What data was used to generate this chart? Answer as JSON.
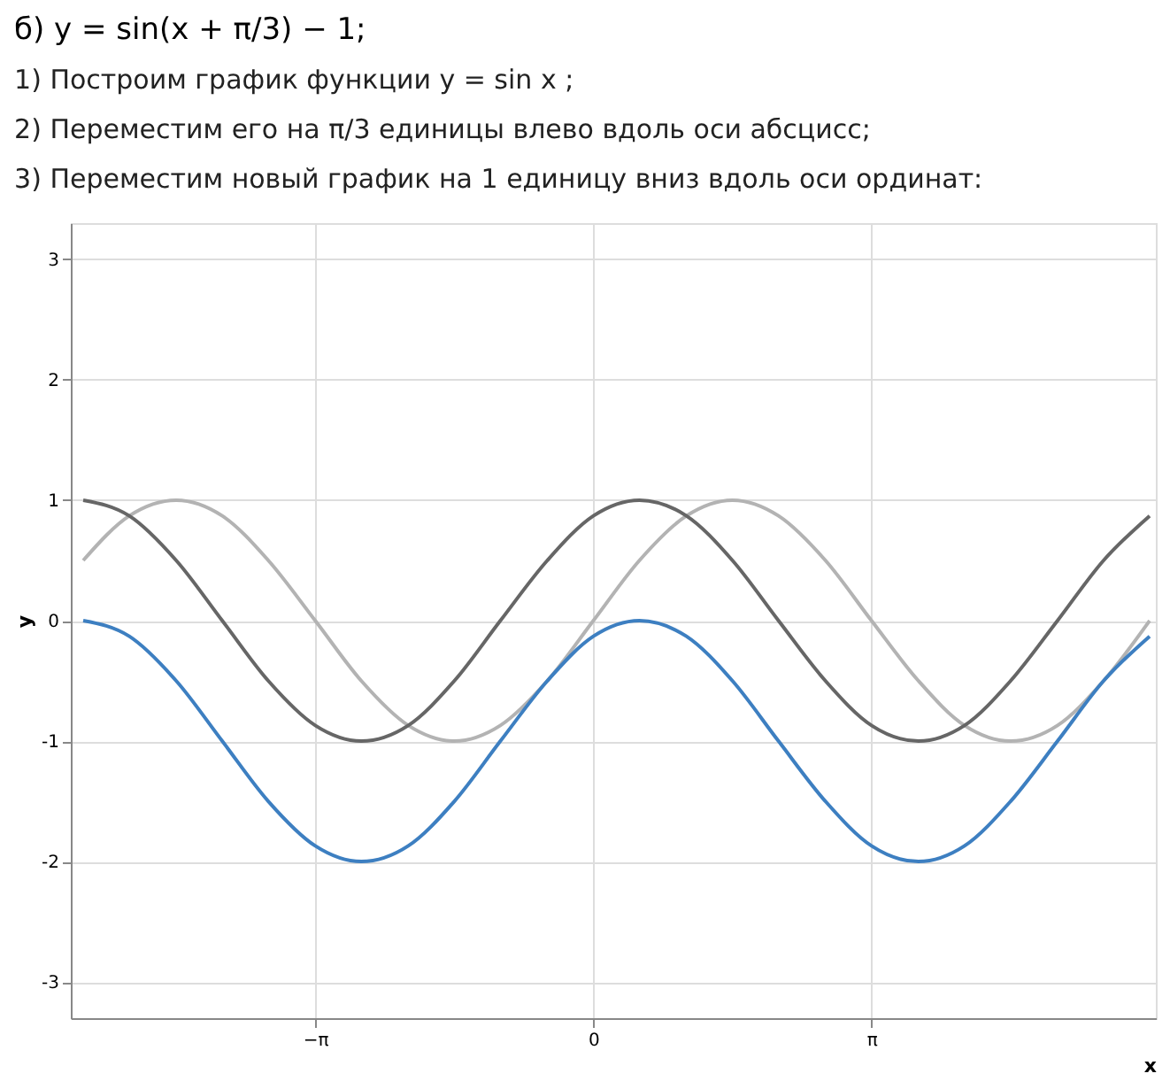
{
  "chart_data": {
    "type": "line",
    "title": "б) y = sin(x + π/3) − 1;",
    "annotations": [
      "1) Построим график функции y = sin x ;",
      "2) Переместим его на π/3 единицы влево вдоль оси абсцисс;",
      "3) Переместим новый график на 1 единицу вниз вдоль оси ординат:"
    ],
    "xlabel": "x",
    "ylabel": "y",
    "x": [
      -5.76,
      -5.24,
      -4.71,
      -4.19,
      -3.67,
      -3.14,
      -2.62,
      -2.09,
      -1.57,
      -1.05,
      -0.52,
      0,
      0.52,
      1.05,
      1.57,
      2.09,
      2.62,
      3.14,
      3.67,
      4.19,
      4.71,
      5.24,
      5.76,
      6.28
    ],
    "series": [
      {
        "color": "#b3b3b3",
        "values": [
          0.5,
          0.87,
          1,
          0.87,
          0.5,
          0,
          -0.5,
          -0.87,
          -1,
          -0.87,
          -0.5,
          0,
          0.5,
          0.87,
          1,
          0.87,
          0.5,
          0,
          -0.5,
          -0.87,
          -1,
          -0.87,
          -0.5,
          0
        ]
      },
      {
        "color": "#666666",
        "values": [
          1,
          0.87,
          0.5,
          0,
          -0.5,
          -0.87,
          -1,
          -0.87,
          -0.5,
          0,
          0.5,
          0.87,
          1,
          0.87,
          0.5,
          0,
          -0.5,
          -0.87,
          -1,
          -0.87,
          -0.5,
          0,
          0.5,
          0.87
        ]
      },
      {
        "color": "#3d7fc1",
        "values": [
          0,
          -0.13,
          -0.5,
          -1,
          -1.5,
          -1.87,
          -2,
          -1.87,
          -1.5,
          -1,
          -0.5,
          -0.13,
          0,
          -0.13,
          -0.5,
          -1,
          -1.5,
          -1.87,
          -2,
          -1.87,
          -1.5,
          -1,
          -0.5,
          -0.13
        ]
      }
    ],
    "xlim": [
      -5.9,
      6.35
    ],
    "xticks": [
      {
        "value": -3.14159,
        "label": "−π"
      },
      0,
      {
        "value": 3.14159,
        "label": "π"
      }
    ],
    "ylim": [
      -3.3,
      3.3
    ],
    "yticks": [
      -3,
      -2,
      -1,
      0,
      1,
      2,
      3
    ],
    "grid": true,
    "marker": "none",
    "line_style": "solid"
  }
}
